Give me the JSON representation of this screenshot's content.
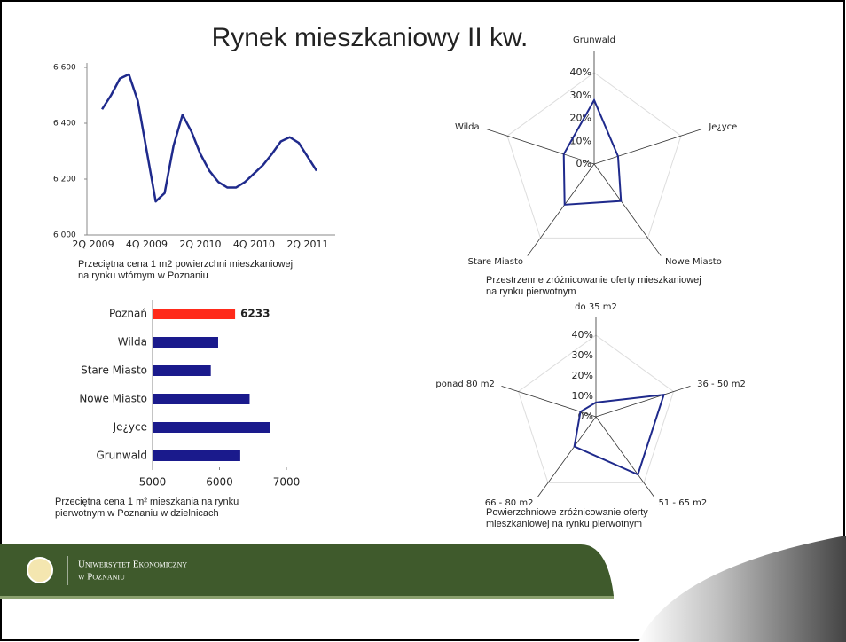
{
  "title": "Rynek mieszkaniowy II kw.",
  "chart_data": [
    {
      "type": "line",
      "categories": [
        "2Q 2009",
        null,
        null,
        null,
        null,
        null,
        "4Q 2009",
        null,
        null,
        null,
        null,
        null,
        "2Q 2010",
        null,
        null,
        null,
        null,
        null,
        "4Q 2010",
        null,
        null,
        null,
        null,
        null,
        "2Q 2011",
        null
      ],
      "values": [
        null,
        6450,
        6500,
        6560,
        6575,
        6480,
        6300,
        6120,
        6150,
        6320,
        6430,
        6370,
        6290,
        6230,
        6190,
        6170,
        6170,
        6190,
        6220,
        6250,
        6290,
        6335,
        6350,
        6330,
        6280,
        6230
      ],
      "color": "#1f2a8c",
      "ylim": [
        6000,
        6600
      ],
      "yticks": [
        {
          "value": 6000,
          "label": "6 000"
        },
        {
          "value": 6200,
          "label": "6 200"
        },
        {
          "value": 6400,
          "label": "6 400"
        },
        {
          "value": 6600,
          "label": "6 600"
        }
      ],
      "caption": [
        "Przeciętna cena 1 m2 powierzchni mieszkaniowej",
        "na rynku wtórnym  w Poznaniu"
      ]
    },
    {
      "type": "radar",
      "categories": [
        "Grunwald",
        "Je¿yce",
        "Nowe Miasto",
        "Stare Miasto",
        "Wilda"
      ],
      "values": [
        28,
        11,
        20,
        22,
        14
      ],
      "color": "#1f2a8c",
      "ylim": [
        0,
        40
      ],
      "yticks": [
        {
          "value": 0,
          "label": "0%"
        },
        {
          "value": 10,
          "label": "10%"
        },
        {
          "value": 20,
          "label": "20%"
        },
        {
          "value": 30,
          "label": "30%"
        },
        {
          "value": 40,
          "label": "40%"
        }
      ],
      "caption": [
        "Przestrzenne zróżnicowanie oferty mieszkaniowej",
        "na rynku pierwotnym"
      ]
    },
    {
      "type": "hbar",
      "categories": [
        "Poznań",
        "Wilda",
        "Stare Miasto",
        "Nowe Miasto",
        "Je¿yce",
        "Grunwald"
      ],
      "values": [
        6233,
        5980,
        5870,
        6450,
        6750,
        6310
      ],
      "value_labels": [
        "6233",
        null,
        null,
        null,
        null,
        null
      ],
      "colors": [
        "#ff2a1a",
        "#1a1a8c",
        "#1a1a8c",
        "#1a1a8c",
        "#1a1a8c",
        "#1a1a8c"
      ],
      "xlim": [
        5000,
        7000
      ],
      "xticks": [
        5000,
        6000,
        7000
      ],
      "caption": [
        "Przeciętna cena 1 m² mieszkania na rynku",
        "pierwotnym w Poznaniu w dzielnicach"
      ]
    },
    {
      "type": "radar",
      "categories": [
        "do 35 m2",
        "36 - 50 m2",
        "51 - 65 m2",
        "66 - 80 m2",
        "ponad 80 m2"
      ],
      "values": [
        7,
        35,
        35,
        18,
        8
      ],
      "color": "#1f2a8c",
      "ylim": [
        0,
        40
      ],
      "yticks": [
        {
          "value": 0,
          "label": "0%"
        },
        {
          "value": 10,
          "label": "10%"
        },
        {
          "value": 20,
          "label": "20%"
        },
        {
          "value": 30,
          "label": "30%"
        },
        {
          "value": 40,
          "label": "40%"
        }
      ],
      "caption": [
        "Powierzchniowe zróżnicowanie oferty",
        "mieszkaniowej na rynku pierwotnym"
      ]
    }
  ],
  "footer": {
    "line1": "Uniwersytet Ekonomiczny",
    "line2": "w Poznaniu"
  }
}
